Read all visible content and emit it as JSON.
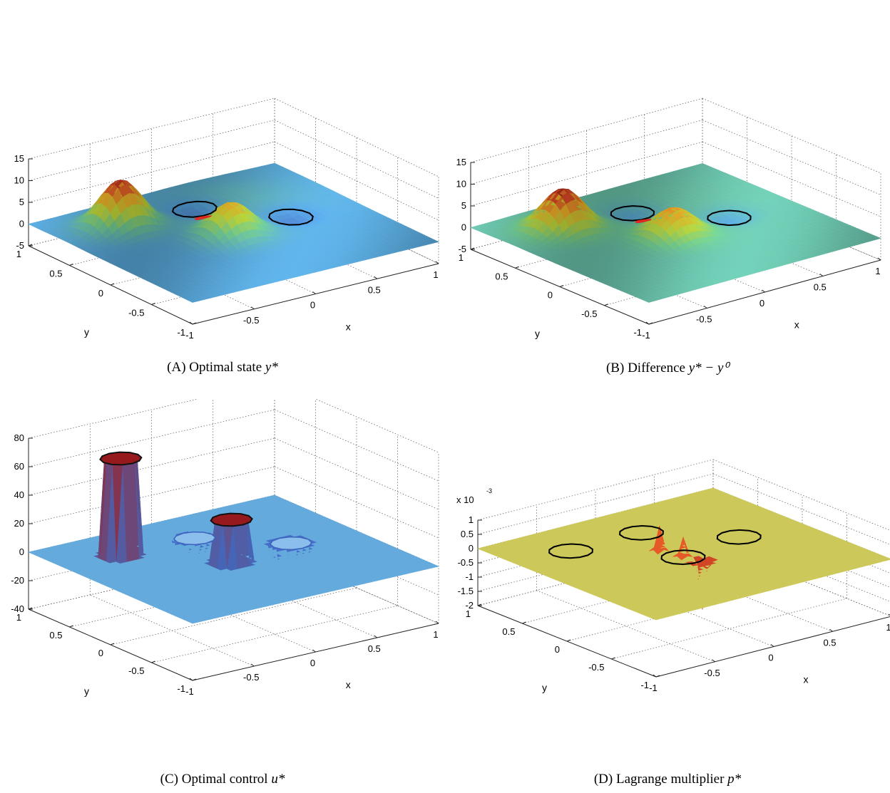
{
  "chart_data": [
    {
      "type": "surface",
      "panel": "A",
      "caption_tag": "(A)",
      "caption_text": "Optimal state",
      "caption_math": "y*",
      "xlabel": "x",
      "ylabel": "y",
      "x_ticks": [
        "-1",
        "-0.5",
        "0",
        "0.5",
        "1"
      ],
      "y_ticks": [
        "-1",
        "-0.5",
        "0",
        "0.5",
        "1"
      ],
      "z_ticks": [
        "-5",
        "0",
        "5",
        "10",
        "15"
      ],
      "zlim": [
        -5,
        15
      ],
      "z_multiplier": "",
      "peaks": [
        {
          "x": -0.55,
          "y": 0.55,
          "height": 11
        },
        {
          "x": -0.05,
          "y": -0.05,
          "height": 7.5
        }
      ],
      "contours": [
        {
          "x": 0.05,
          "y": 0.55,
          "color": "#000000"
        },
        {
          "x": 0.5,
          "y": 0.05,
          "color": "#000000"
        },
        {
          "x": -0.05,
          "y": 0.3,
          "color": "#e0281e"
        }
      ]
    },
    {
      "type": "surface",
      "panel": "B",
      "caption_tag": "(B)",
      "caption_text": "Difference",
      "caption_math": "y* − y⁰",
      "xlabel": "x",
      "ylabel": "y",
      "x_ticks": [
        "-1",
        "-0.5",
        "0",
        "0.5",
        "1"
      ],
      "y_ticks": [
        "-1",
        "-0.5",
        "0",
        "0.5",
        "1"
      ],
      "z_ticks": [
        "-5",
        "0",
        "5",
        "10",
        "15"
      ],
      "zlim": [
        -5,
        15
      ],
      "z_multiplier": "",
      "peaks": [
        {
          "x": -0.55,
          "y": 0.55,
          "height": 9.5
        },
        {
          "x": -0.05,
          "y": -0.05,
          "height": 6.5
        }
      ],
      "contours": [
        {
          "x": 0.05,
          "y": 0.55,
          "color": "#000000"
        },
        {
          "x": 0.5,
          "y": 0.05,
          "color": "#000000"
        },
        {
          "x": -0.05,
          "y": 0.3,
          "color": "#e0281e"
        }
      ]
    },
    {
      "type": "surface",
      "panel": "C",
      "caption_tag": "(C)",
      "caption_text": "Optimal control",
      "caption_math": "u*",
      "xlabel": "x",
      "ylabel": "y",
      "x_ticks": [
        "-1",
        "-0.5",
        "0",
        "0.5",
        "1"
      ],
      "y_ticks": [
        "-1",
        "-0.5",
        "0",
        "0.5",
        "1"
      ],
      "z_ticks": [
        "-40",
        "-20",
        "0",
        "20",
        "40",
        "60",
        "80"
      ],
      "zlim": [
        -40,
        80
      ],
      "z_multiplier": "",
      "columns": [
        {
          "x": -0.55,
          "y": 0.55,
          "height": 68
        },
        {
          "x": -0.05,
          "y": -0.05,
          "height": 30
        }
      ],
      "wells": [
        {
          "x": 0.05,
          "y": 0.55,
          "depth": -15
        },
        {
          "x": 0.5,
          "y": 0.05,
          "depth": -30
        }
      ]
    },
    {
      "type": "surface",
      "panel": "D",
      "caption_tag": "(D)",
      "caption_text": "Lagrange multiplier",
      "caption_math": "p*",
      "xlabel": "x",
      "ylabel": "y",
      "x_ticks": [
        "-1",
        "-0.5",
        "0",
        "0.5",
        "1"
      ],
      "y_ticks": [
        "-1",
        "-0.5",
        "0",
        "0.5",
        "1"
      ],
      "z_ticks": [
        "-2",
        "-1.5",
        "-1",
        "-0.5",
        "0",
        "0.5",
        "1"
      ],
      "zlim": [
        -2,
        1
      ],
      "z_multiplier": "x 10",
      "z_multiplier_exp": "-3",
      "spikes": [
        {
          "x": -0.1,
          "y": 0.15,
          "height": 0.9
        },
        {
          "x": -0.05,
          "y": -0.05,
          "height": 0.7
        },
        {
          "x": 0.0,
          "y": -0.2,
          "height": -1.7
        }
      ],
      "contours": [
        {
          "x": -0.55,
          "y": 0.55,
          "color": "#000000"
        },
        {
          "x": 0.05,
          "y": 0.55,
          "color": "#000000"
        },
        {
          "x": -0.05,
          "y": -0.05,
          "color": "#000000"
        },
        {
          "x": 0.5,
          "y": 0.05,
          "color": "#000000"
        }
      ]
    }
  ]
}
